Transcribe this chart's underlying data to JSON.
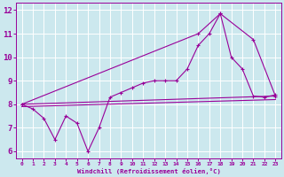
{
  "bg_color": "#cce8ee",
  "grid_color": "#ffffff",
  "line_color": "#990099",
  "xlabel": "Windchill (Refroidissement éolien,°C)",
  "xlim": [
    -0.5,
    23.5
  ],
  "ylim": [
    5.7,
    12.3
  ],
  "xticks": [
    0,
    1,
    2,
    3,
    4,
    5,
    6,
    7,
    8,
    9,
    10,
    11,
    12,
    13,
    14,
    15,
    16,
    17,
    18,
    19,
    20,
    21,
    22,
    23
  ],
  "yticks": [
    6,
    7,
    8,
    9,
    10,
    11,
    12
  ],
  "line1_x": [
    0,
    1,
    2,
    3,
    4,
    5,
    6,
    7,
    8,
    9,
    10,
    11,
    12,
    13,
    14,
    15,
    16,
    17,
    18,
    19,
    20,
    21,
    22,
    23
  ],
  "line1_y": [
    8.0,
    7.8,
    7.4,
    6.5,
    7.5,
    7.2,
    6.0,
    7.0,
    8.3,
    8.5,
    8.7,
    8.9,
    9.0,
    9.0,
    9.0,
    9.5,
    10.5,
    11.0,
    11.85,
    10.0,
    9.5,
    8.35,
    8.3,
    8.4
  ],
  "line2_x": [
    0,
    23
  ],
  "line2_y": [
    7.9,
    8.2
  ],
  "line3_x": [
    0,
    23
  ],
  "line3_y": [
    8.0,
    8.35
  ],
  "line4_x": [
    0,
    16,
    18,
    21,
    23
  ],
  "line4_y": [
    8.0,
    11.0,
    11.85,
    10.75,
    8.35
  ],
  "figsize": [
    3.2,
    2.0
  ],
  "dpi": 100
}
